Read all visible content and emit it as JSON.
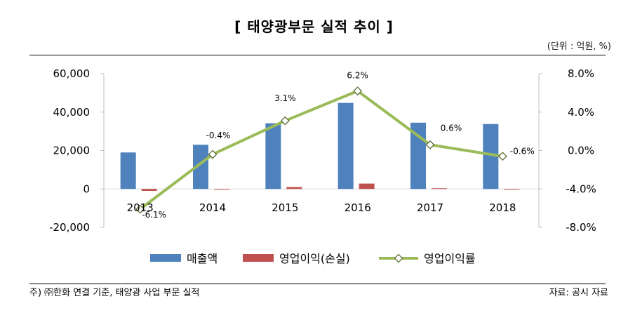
{
  "header": {
    "title": "[ 태양광부문 실적 추이 ]",
    "unit_note": "(단위 : 억원, %)"
  },
  "footer": {
    "footnote": "주) ㈜한화 연결 기준, 태양광 사업 부문 실적",
    "source": "자료: 공시 자료"
  },
  "colors": {
    "revenue": "#4f81bd",
    "operating_profit": "#c0504d",
    "margin_line": "#9bbb59",
    "negative_tick": "#ff0000"
  },
  "chart_data": {
    "type": "bar",
    "categories": [
      "2013",
      "2014",
      "2015",
      "2016",
      "2017",
      "2018"
    ],
    "series": [
      {
        "name": "매출액",
        "type": "bar",
        "axis": "left",
        "values": [
          19000,
          23000,
          34200,
          44800,
          34500,
          33800
        ]
      },
      {
        "name": "영업이익(손실)",
        "type": "bar",
        "axis": "left",
        "values": [
          -1000,
          -100,
          1000,
          2800,
          100,
          -200
        ]
      },
      {
        "name": "영업이익률",
        "type": "line",
        "axis": "right",
        "values": [
          -6.1,
          -0.4,
          3.1,
          6.2,
          0.6,
          -0.6
        ],
        "labels": [
          "-6.1%",
          "-0.4%",
          "3.1%",
          "6.2%",
          "0.6%",
          "-0.6%"
        ]
      }
    ],
    "left_axis": {
      "min": -20000,
      "max": 60000,
      "step": 20000,
      "ticks": [
        "60,000",
        "40,000",
        "20,000",
        "0",
        "-20,000"
      ]
    },
    "right_axis": {
      "min": -8,
      "max": 8,
      "step": 4,
      "ticks": [
        "8.0%",
        "4.0%",
        "0.0%",
        "-4.0%",
        "-8.0%"
      ]
    },
    "grid": false,
    "legend_position": "bottom"
  }
}
